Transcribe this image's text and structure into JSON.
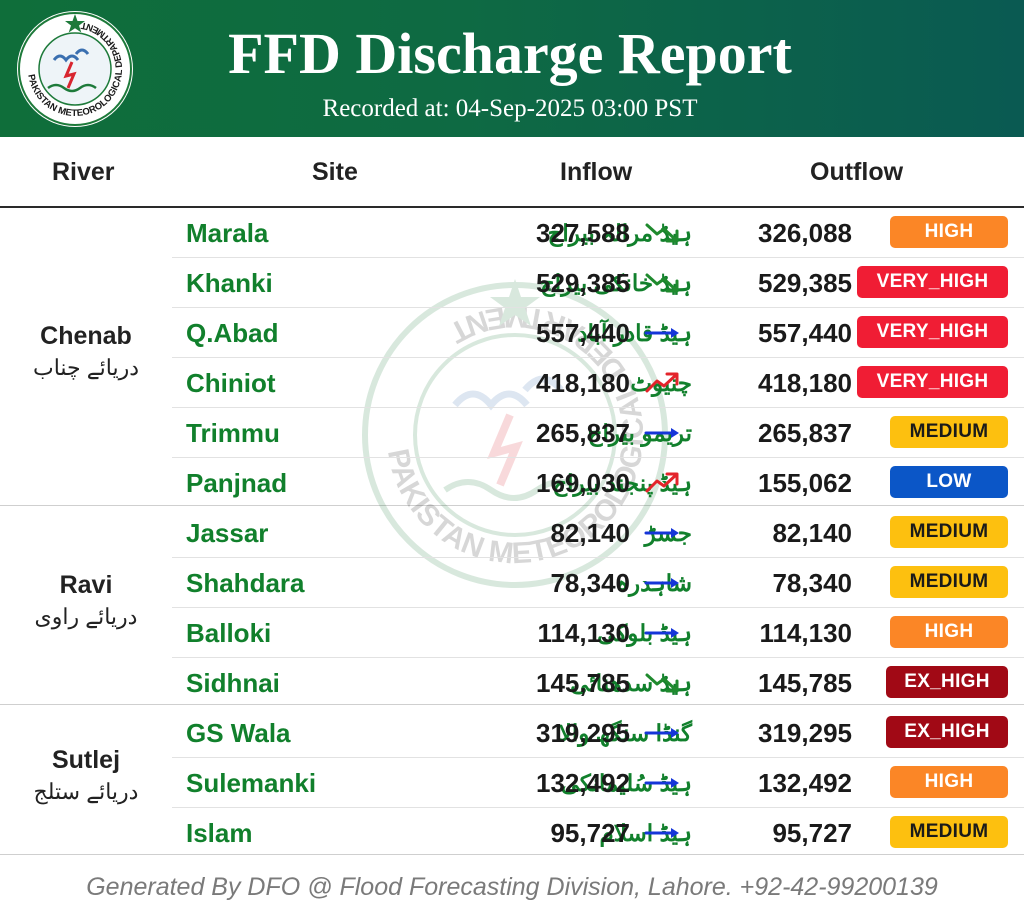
{
  "header": {
    "title": "FFD Discharge Report",
    "subtitle": "Recorded at: 04-Sep-2025 03:00 PST",
    "logo_text": "PAKISTAN METEOROLOGICAL DEPARTMENT"
  },
  "columns": {
    "river": "River",
    "site": "Site",
    "inflow": "Inflow",
    "outflow": "Outflow"
  },
  "groups": [
    {
      "river_en": "Chenab",
      "river_ur": "دریائے چناب"
    },
    {
      "river_en": "Ravi",
      "river_ur": "دریائے راوی"
    },
    {
      "river_en": "Sutlej",
      "river_ur": "دریائے ستلج"
    }
  ],
  "rows": [
    {
      "site_en": "Marala",
      "site_ur": "ہیڈ مرالہ بیراج",
      "inflow": "327,588",
      "trend": "falling",
      "outflow": "326,088",
      "status": "HIGH"
    },
    {
      "site_en": "Khanki",
      "site_ur": "ہیڈ خانکی بیراج",
      "inflow": "529,385",
      "trend": "falling",
      "outflow": "529,385",
      "status": "VERY_HIGH"
    },
    {
      "site_en": "Q.Abad",
      "site_ur": "ہیڈ قادر آباد",
      "inflow": "557,440",
      "trend": "steady",
      "outflow": "557,440",
      "status": "VERY_HIGH"
    },
    {
      "site_en": "Chiniot",
      "site_ur": "چنیوٹ",
      "inflow": "418,180",
      "trend": "rising",
      "outflow": "418,180",
      "status": "VERY_HIGH"
    },
    {
      "site_en": "Trimmu",
      "site_ur": "تریمو بیراج",
      "inflow": "265,837",
      "trend": "steady",
      "outflow": "265,837",
      "status": "MEDIUM"
    },
    {
      "site_en": "Panjnad",
      "site_ur": "ہیڈ پنجند بیراج",
      "inflow": "169,030",
      "trend": "rising",
      "outflow": "155,062",
      "status": "LOW"
    },
    {
      "site_en": "Jassar",
      "site_ur": "جسڑ",
      "inflow": "82,140",
      "trend": "steady",
      "outflow": "82,140",
      "status": "MEDIUM"
    },
    {
      "site_en": "Shahdara",
      "site_ur": "شاہدرہ",
      "inflow": "78,340",
      "trend": "steady",
      "outflow": "78,340",
      "status": "MEDIUM"
    },
    {
      "site_en": "Balloki",
      "site_ur": "ہیڈ بلوکی",
      "inflow": "114,130",
      "trend": "steady",
      "outflow": "114,130",
      "status": "HIGH"
    },
    {
      "site_en": "Sidhnai",
      "site_ur": "ہیڈ سدھنائی",
      "inflow": "145,785",
      "trend": "falling",
      "outflow": "145,785",
      "status": "EX_HIGH"
    },
    {
      "site_en": "GS Wala",
      "site_ur": "گنڈا سنگھ والا",
      "inflow": "319,295",
      "trend": "steady",
      "outflow": "319,295",
      "status": "EX_HIGH"
    },
    {
      "site_en": "Sulemanki",
      "site_ur": "ہیڈ سُلیمانکی",
      "inflow": "132,492",
      "trend": "steady",
      "outflow": "132,492",
      "status": "HIGH"
    },
    {
      "site_en": "Islam",
      "site_ur": "ہیڈ اسلام",
      "inflow": "95,727",
      "trend": "steady",
      "outflow": "95,727",
      "status": "MEDIUM"
    }
  ],
  "status_colors": {
    "HIGH": "#fb8626",
    "VERY_HIGH": "#f01d34",
    "MEDIUM": "#fdc00f",
    "LOW": "#0b56c7",
    "EX_HIGH": "#a10915"
  },
  "trend_icons": {
    "falling": "falling-arrow-icon",
    "steady": "right-arrow-icon",
    "rising": "rising-arrow-icon"
  },
  "footer": "Generated By DFO @ Flood Forecasting Division, Lahore. +92-42-99200139"
}
